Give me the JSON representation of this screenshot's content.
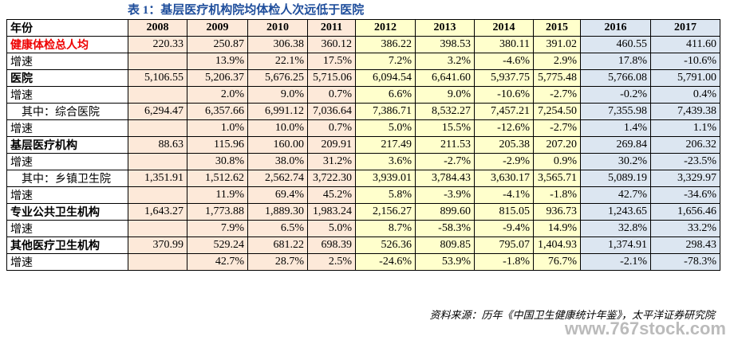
{
  "title": "表 1：基层医疗机构院均体检人次远低于医院",
  "table": {
    "header": [
      "年份",
      "2008",
      "2009",
      "2010",
      "2011",
      "2012",
      "2013",
      "2014",
      "2015",
      "2016",
      "2017"
    ],
    "rows": [
      [
        "健康体检总人均",
        "220.33",
        "250.87",
        "306.38",
        "360.12",
        "386.22",
        "398.53",
        "380.11",
        "391.02",
        "460.55",
        "411.60"
      ],
      [
        "增速",
        null,
        "13.9%",
        "22.1%",
        "17.5%",
        "7.2%",
        "3.2%",
        "-4.6%",
        "2.9%",
        "17.8%",
        "-10.6%"
      ],
      [
        "医院",
        "5,106.55",
        "5,206.37",
        "5,676.25",
        "5,715.06",
        "6,094.54",
        "6,641.60",
        "5,937.75",
        "5,775.48",
        "5,766.08",
        "5,791.00"
      ],
      [
        "增速",
        null,
        "2.0%",
        "9.0%",
        "0.7%",
        "6.6%",
        "9.0%",
        "-10.6%",
        "-2.7%",
        "-0.2%",
        "0.4%"
      ],
      [
        "其中：综合医院",
        "6,294.47",
        "6,357.66",
        "6,991.12",
        "7,036.64",
        "7,386.71",
        "8,532.27",
        "7,457.21",
        "7,254.50",
        "7,355.98",
        "7,439.38"
      ],
      [
        "增速",
        null,
        "1.0%",
        "10.0%",
        "0.7%",
        "5.0%",
        "15.5%",
        "-12.6%",
        "-2.7%",
        "1.4%",
        "1.1%"
      ],
      [
        "基层医疗机构",
        "88.63",
        "115.96",
        "160.00",
        "209.91",
        "217.49",
        "211.53",
        "205.38",
        "207.20",
        "269.84",
        "206.32"
      ],
      [
        "增速",
        null,
        "30.8%",
        "38.0%",
        "31.2%",
        "3.6%",
        "-2.7%",
        "-2.9%",
        "0.9%",
        "30.2%",
        "-23.5%"
      ],
      [
        "其中：乡镇卫生院",
        "1,351.91",
        "1,512.62",
        "2,562.74",
        "3,722.30",
        "3,939.01",
        "3,784.43",
        "3,630.17",
        "3,565.71",
        "5,089.19",
        "3,329.97"
      ],
      [
        "增速",
        null,
        "11.9%",
        "69.4%",
        "45.2%",
        "5.8%",
        "-3.9%",
        "-4.1%",
        "-1.8%",
        "42.7%",
        "-34.6%"
      ],
      [
        "专业公共卫生机构",
        "1,643.27",
        "1,773.88",
        "1,889.30",
        "1,983.24",
        "2,156.27",
        "899.60",
        "815.05",
        "936.73",
        "1,243.65",
        "1,656.46"
      ],
      [
        "增速",
        null,
        "7.9%",
        "6.5%",
        "5.0%",
        "8.7%",
        "-58.3%",
        "-9.4%",
        "14.9%",
        "32.8%",
        "33.2%"
      ],
      [
        "其他医疗卫生机构",
        "370.99",
        "529.24",
        "681.22",
        "698.39",
        "526.36",
        "809.85",
        "795.07",
        "1,404.93",
        "1,374.91",
        "298.43"
      ],
      [
        "增速",
        null,
        "42.7%",
        "28.7%",
        "2.5%",
        "-24.6%",
        "53.9%",
        "-1.8%",
        "76.7%",
        "-2.1%",
        "-78.3%"
      ]
    ]
  },
  "source": "资料来源：历年《中国卫生健康统计年鉴》，太平洋证券研究院",
  "watermark": "www.767stock.com"
}
